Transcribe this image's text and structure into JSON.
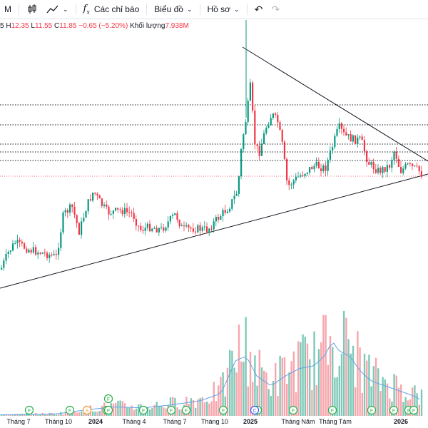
{
  "toolbar": {
    "interval_label": "M",
    "indicators_label": "Các chỉ báo",
    "chart_label": "Biểu đồ",
    "profile_label": "Hồ sơ"
  },
  "legend": {
    "open_tail": "5",
    "high_key": "H",
    "high": "12.35",
    "low_key": "L",
    "low": "11.55",
    "close_key": "C",
    "close": "11.85",
    "change": "−0.65 (−5.20%)",
    "volume_label": "Khối lượng",
    "volume": "7.938M"
  },
  "x_axis": {
    "labels": [
      "Tháng 7",
      "Tháng 10",
      "2024",
      "Tháng 4",
      "Tháng 7",
      "Tháng 10",
      "2025",
      "Tháng Năm",
      "Tháng Tám",
      "2026"
    ]
  },
  "colors": {
    "up": "#089981",
    "down": "#f23645",
    "up_volume": "#7fc8b8",
    "down_volume": "#f7a6ad",
    "volume_ma": "#5ea3e8",
    "dividend_marker": "#2ab04b",
    "split_marker": "#e9a13b",
    "earnings_marker": "#4257f5"
  },
  "icons": {
    "candles": "candlestick-icon",
    "compare": "line-chart-icon",
    "indicators": "fx-icon",
    "undo": "undo-icon",
    "redo": "redo-icon"
  },
  "chart_data": {
    "type": "candlestick",
    "x_ticks": [
      "Tháng 7",
      "Tháng 10",
      "2024",
      "Tháng 4",
      "Tháng 7",
      "Tháng 10",
      "2025",
      "Tháng Năm",
      "Tháng Tám",
      "2026"
    ],
    "last_bar": {
      "high": 12.35,
      "low": 11.55,
      "close": 11.85,
      "change": -0.65,
      "change_pct": -5.2,
      "volume": "7.938M"
    },
    "markers": {
      "dividend": [
        "F",
        "F",
        "F",
        "F",
        "F",
        "F",
        "F",
        "F",
        "F",
        "F",
        "F",
        "F",
        "F",
        "F",
        "F",
        "F"
      ],
      "split": [
        "S"
      ],
      "earnings": [
        "C"
      ]
    },
    "legend_placement": "top-left",
    "grid": false
  }
}
